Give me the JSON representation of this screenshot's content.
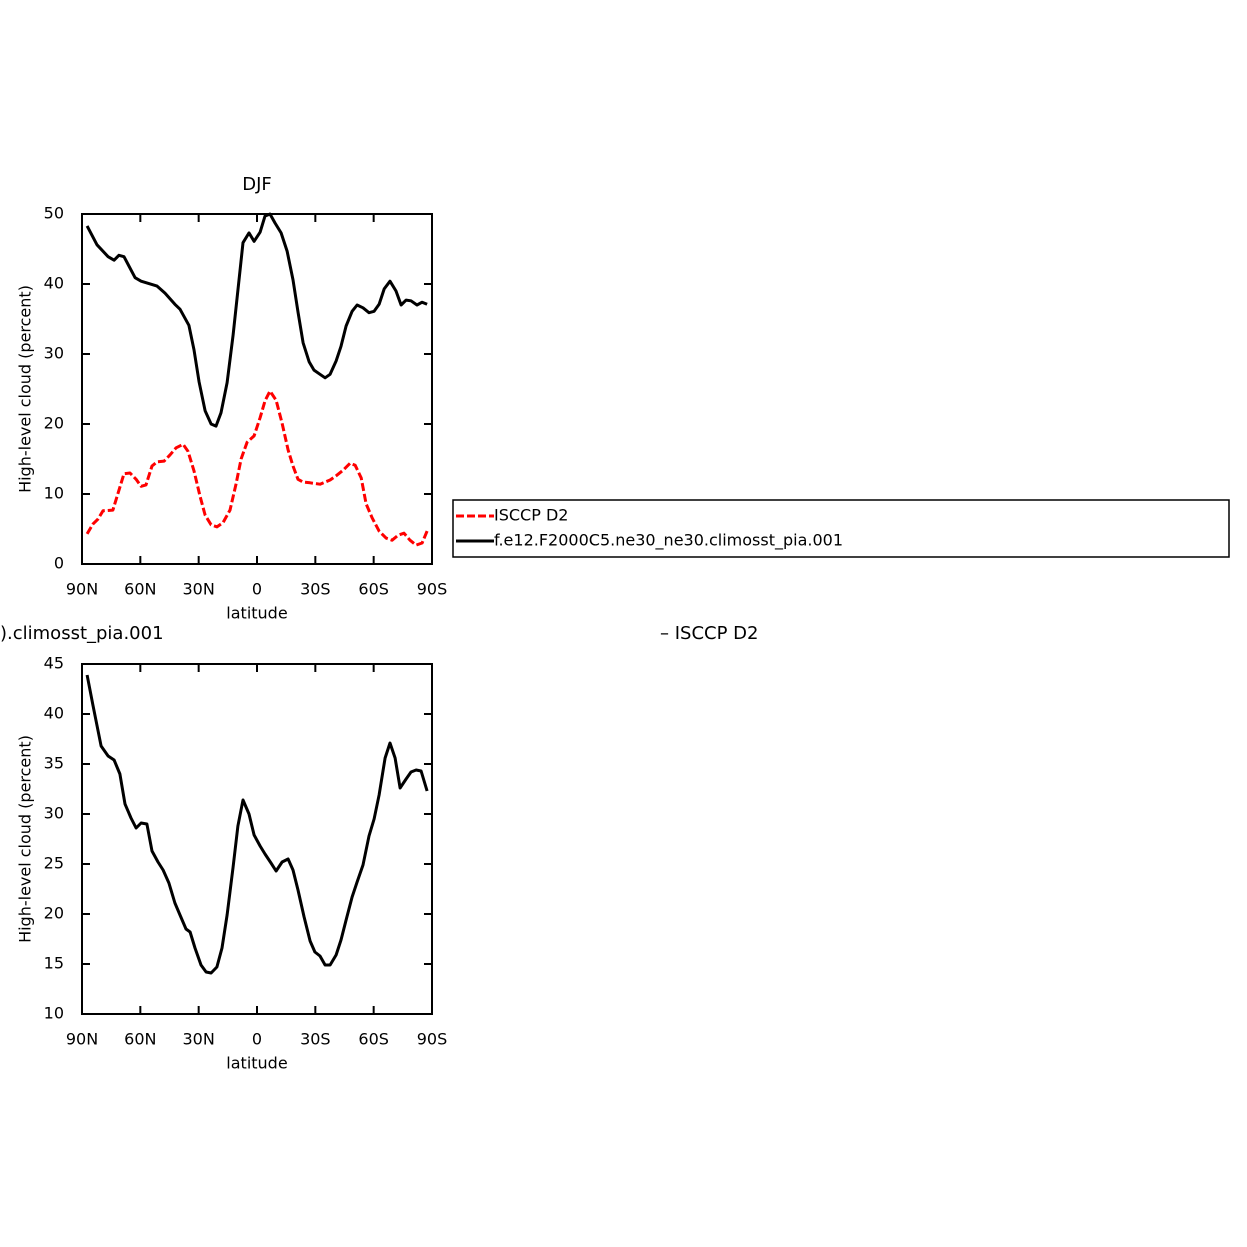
{
  "chart_data": [
    {
      "type": "line",
      "title": "DJF",
      "x_label": "latitude",
      "y_label": "High-level cloud (percent)",
      "xlim": [
        90,
        -90
      ],
      "xticks": [
        {
          "value": 90,
          "label": "90N"
        },
        {
          "value": 60,
          "label": "60N"
        },
        {
          "value": 30,
          "label": "30N"
        },
        0,
        {
          "value": -30,
          "label": "30S"
        },
        {
          "value": -60,
          "label": "60S"
        },
        {
          "value": -90,
          "label": "90S"
        }
      ],
      "ylim": [
        0,
        50
      ],
      "yticks": [
        0,
        10,
        20,
        30,
        40,
        50
      ],
      "legend": true,
      "series": [
        {
          "name": "ISCCP D2",
          "color": "#ff0000",
          "line_style": "dashed",
          "x": [
            87.4,
            84.4,
            81.8,
            79.2,
            74.1,
            68.4,
            65.3,
            62.2,
            59.6,
            57.1,
            54,
            51.4,
            47.8,
            44.7,
            41.6,
            38,
            35.5,
            32.4,
            29.3,
            26.7,
            23.6,
            20.6,
            17.5,
            13.9,
            10.8,
            8.2,
            5.1,
            1.5,
            -1.6,
            -4.1,
            -6.7,
            -9.8,
            -12.9,
            -16,
            -18.5,
            -21.1,
            -23.7,
            -27.3,
            -32.4,
            -37.6,
            -40.7,
            -44.3,
            -47.9,
            -50.5,
            -53.6,
            -56.1,
            -59.2,
            -62.8,
            -66.4,
            -69.5,
            -72.5,
            -75.6,
            -78.7,
            -81.8,
            -84.9,
            -87.5
          ],
          "values": [
            4.3,
            5.7,
            6.4,
            7.6,
            7.7,
            12.9,
            13,
            12.1,
            11.1,
            11.3,
            14,
            14.6,
            14.7,
            15.6,
            16.6,
            17.1,
            16.1,
            13.3,
            9.7,
            7,
            5.6,
            5.3,
            5.9,
            7.7,
            11.4,
            15,
            17.4,
            18.3,
            20.9,
            23.3,
            24.7,
            23.4,
            20.1,
            16.3,
            14,
            12.1,
            11.7,
            11.6,
            11.4,
            12,
            12.6,
            13.4,
            14.4,
            14.1,
            12.3,
            8.6,
            6.6,
            4.7,
            3.7,
            3.4,
            4.1,
            4.4,
            3.4,
            2.7,
            3,
            4.7
          ]
        },
        {
          "name": "f.e12.F2000C5.ne30_ne30.climosst_pia.001",
          "color": "#000000",
          "line_style": "solid",
          "x": [
            87.4,
            82.3,
            76.6,
            73.5,
            71,
            68.4,
            62.7,
            59.6,
            51.4,
            47.3,
            42.2,
            39.6,
            35,
            32.4,
            29.8,
            26.7,
            23.6,
            21.1,
            18.5,
            15.4,
            12.3,
            7.2,
            4.1,
            1.5,
            -1.6,
            -4.1,
            -6.7,
            -9.3,
            -12.4,
            -15.5,
            -18.5,
            -21.1,
            -23.7,
            -26.8,
            -29.3,
            -32.4,
            -35,
            -37.6,
            -40.7,
            -43.2,
            -45.8,
            -48.9,
            -51.5,
            -54.5,
            -57.6,
            -60.2,
            -62.8,
            -65.4,
            -68.4,
            -71.5,
            -74.1,
            -76.7,
            -79.2,
            -82.3,
            -84.9,
            -87.5
          ],
          "values": [
            48.3,
            45.6,
            43.9,
            43.4,
            44.1,
            43.9,
            40.9,
            40.4,
            39.7,
            38.7,
            37.1,
            36.4,
            34.1,
            30.6,
            26,
            21.9,
            20,
            19.7,
            21.6,
            25.9,
            32.7,
            45.9,
            47.3,
            46.1,
            47.4,
            49.7,
            50,
            48.7,
            47.3,
            44.7,
            40.6,
            36,
            31.6,
            28.9,
            27.7,
            27.1,
            26.6,
            27.1,
            29,
            31.1,
            34,
            36.1,
            37,
            36.6,
            35.9,
            36.1,
            37.1,
            39.3,
            40.4,
            39,
            37,
            37.7,
            37.6,
            37,
            37.4,
            37.1
          ]
        }
      ]
    },
    {
      "type": "line",
      "title": ").climosst_pia.001",
      "annotations": [
        "– ISCCP D2"
      ],
      "x_label": "latitude",
      "y_label": "High-level cloud (percent)",
      "xlim": [
        90,
        -90
      ],
      "xticks": [
        {
          "value": 90,
          "label": "90N"
        },
        {
          "value": 60,
          "label": "60N"
        },
        {
          "value": 30,
          "label": "30N"
        },
        0,
        {
          "value": -30,
          "label": "30S"
        },
        {
          "value": -60,
          "label": "60S"
        },
        {
          "value": -90,
          "label": "90S"
        }
      ],
      "ylim": [
        10,
        45
      ],
      "yticks": [
        10,
        15,
        20,
        25,
        30,
        35,
        40,
        45
      ],
      "legend": false,
      "series": [
        {
          "color": "#000000",
          "line_style": "solid",
          "x": [
            87.4,
            84.4,
            80.2,
            76.6,
            73.5,
            70.5,
            67.9,
            64.8,
            62.2,
            59.6,
            56.6,
            54,
            50.9,
            48.3,
            45.3,
            42.2,
            39.6,
            36.5,
            34.4,
            31.9,
            28.8,
            26.2,
            23.6,
            20.6,
            18,
            15.4,
            12.3,
            9.8,
            7.2,
            4.1,
            1.5,
            -1.6,
            -4.1,
            -7.2,
            -9.8,
            -12.9,
            -16,
            -18.5,
            -21.1,
            -24.2,
            -27.3,
            -29.8,
            -32.4,
            -35,
            -37.6,
            -40.7,
            -43.2,
            -45.8,
            -48.9,
            -51.5,
            -54.5,
            -57.6,
            -60.2,
            -62.8,
            -65.9,
            -68.4,
            -71,
            -73.6,
            -76.7,
            -79.2,
            -81.8,
            -84.4,
            -87.5
          ],
          "values": [
            43.9,
            40.9,
            36.8,
            35.8,
            35.4,
            34,
            31,
            29.6,
            28.6,
            29.1,
            29,
            26.3,
            25.2,
            24.4,
            23.1,
            21.1,
            19.9,
            18.5,
            18.2,
            16.6,
            14.9,
            14.2,
            14.1,
            14.7,
            16.6,
            19.9,
            24.7,
            28.8,
            31.4,
            30,
            27.9,
            26.8,
            26,
            25.1,
            24.3,
            25.2,
            25.5,
            24.4,
            22.4,
            19.7,
            17.3,
            16.2,
            15.8,
            14.9,
            14.9,
            15.9,
            17.4,
            19.4,
            21.7,
            23.2,
            24.9,
            27.8,
            29.5,
            31.9,
            35.6,
            37.1,
            35.6,
            32.6,
            33.5,
            34.2,
            34.4,
            34.3,
            32.3
          ]
        }
      ]
    }
  ]
}
